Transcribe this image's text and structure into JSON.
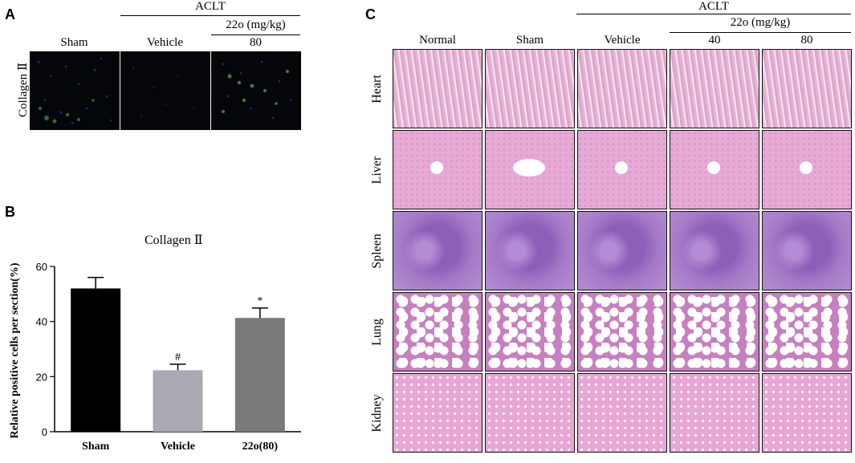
{
  "panel_a": {
    "letter": "A",
    "aclt": "ACLT",
    "dose_header": "22o (mg/kg)",
    "cols": [
      "Sham",
      "Vehicle",
      "80"
    ],
    "row_label": "Collagen Ⅱ"
  },
  "panel_b": {
    "letter": "B"
  },
  "panel_c": {
    "letter": "C",
    "aclt": "ACLT",
    "dose_header": "22o (mg/kg)",
    "cols": [
      "Normal",
      "Sham",
      "Vehicle",
      "40",
      "80"
    ],
    "rows": [
      "Heart",
      "Liver",
      "Spleen",
      "Lung",
      "Kidney"
    ]
  },
  "chart_data": {
    "type": "bar",
    "title": "Collagen Ⅱ",
    "ylabel": "Relative positive cells per section(%)",
    "xlabel": "",
    "categories": [
      "Sham",
      "Vehicle",
      "22o(80)"
    ],
    "values": [
      52,
      22.3,
      41.3
    ],
    "errors": [
      4,
      2.2,
      3.6
    ],
    "annotations": [
      "",
      "#",
      "*"
    ],
    "ylim": [
      0,
      60
    ],
    "yticks": [
      "0",
      "20",
      "40",
      "60"
    ],
    "colors": [
      "#000000",
      "#a9a9b2",
      "#7a7a7a"
    ],
    "grid": false
  }
}
